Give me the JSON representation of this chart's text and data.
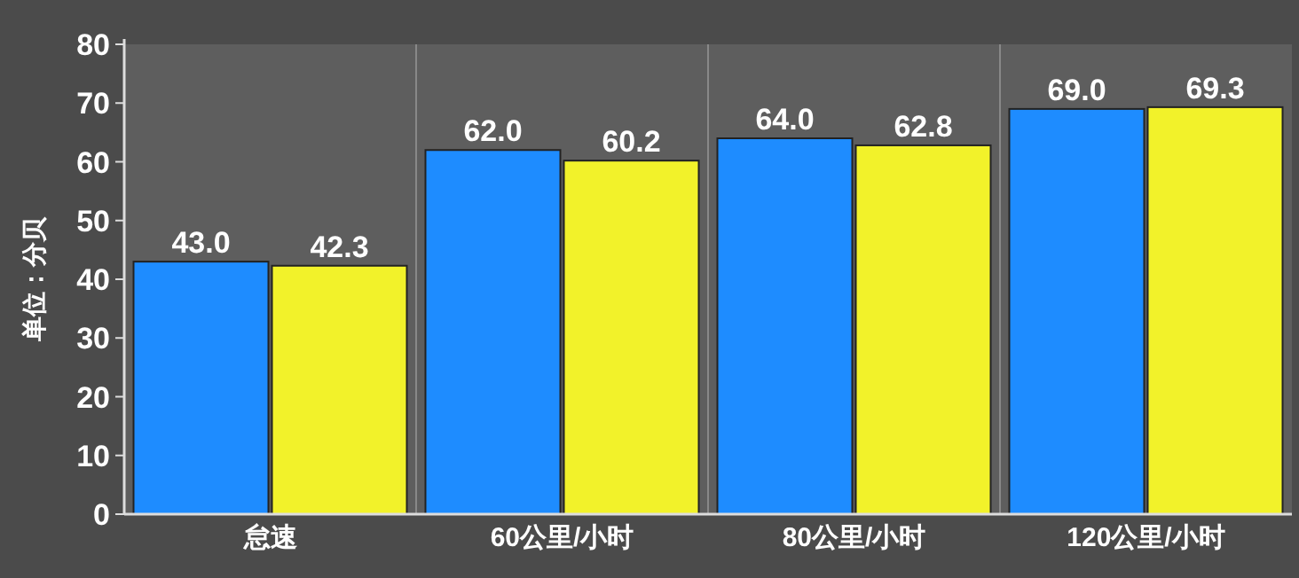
{
  "chart_data": {
    "type": "bar",
    "ylabel": "单位：分贝",
    "categories": [
      "怠速",
      "60公里/小时",
      "80公里/小时",
      "120公里/小时"
    ],
    "series": [
      {
        "color": "#1e8cff",
        "values": [
          43.0,
          62.0,
          64.0,
          69.0
        ],
        "value_labels": [
          "43.0",
          "62.0",
          "64.0",
          "69.0"
        ]
      },
      {
        "color": "#f2f22a",
        "values": [
          42.3,
          60.2,
          62.8,
          69.3
        ],
        "value_labels": [
          "42.3",
          "60.2",
          "62.8",
          "69.3"
        ]
      }
    ],
    "ylim": [
      0,
      80
    ],
    "yticks": [
      0,
      10,
      20,
      30,
      40,
      50,
      60,
      70,
      80
    ],
    "grid": "x"
  }
}
